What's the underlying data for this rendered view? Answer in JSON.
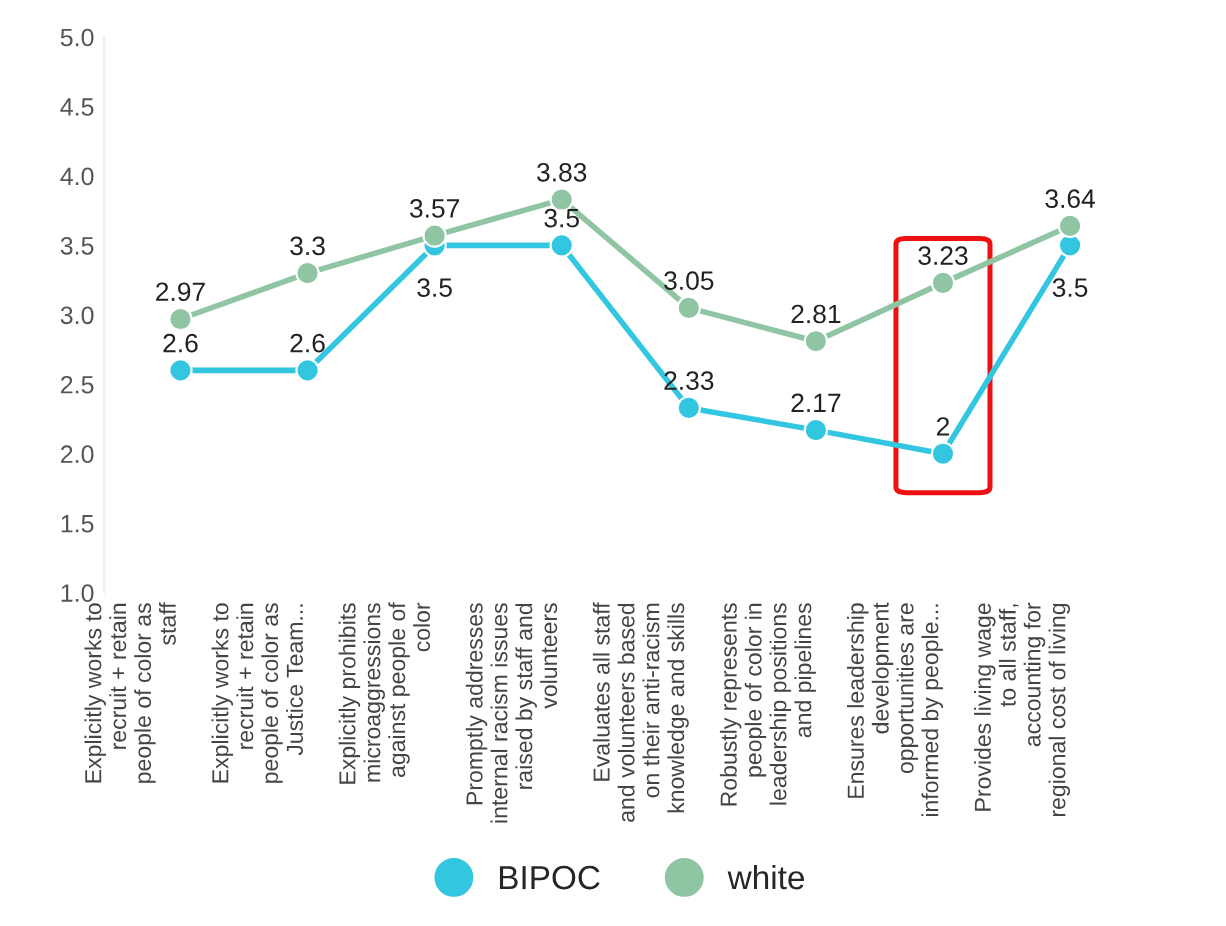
{
  "chart_data": {
    "type": "line",
    "categories": [
      "Explicitly works to\nrecruit + retain\npeople of color as\nstaff",
      "Explicitly works to\nrecruit + retain\npeople of color as\nJustice Team...",
      "Explicitly prohibits\nmicroaggressions\nagainst people of\ncolor",
      "Promptly addresses\ninternal racism issues\nraised by staff and\nvolunteers",
      "Evaluates all staff\nand volunteers based\non their anti-racism\nknowledge and skills",
      "Robustly represents\npeople of color in\nleadership positions\nand pipelines",
      "Ensures leadership\ndevelopment\nopportunities are\ninformed by people...",
      "Provides living wage\nto all staff,\naccounting for\nregional cost of living"
    ],
    "series": [
      {
        "name": "BIPOC",
        "color": "#33c6e0",
        "values": [
          2.6,
          2.6,
          3.5,
          3.5,
          2.33,
          2.17,
          2,
          3.5
        ]
      },
      {
        "name": "white",
        "color": "#8fc5a3",
        "values": [
          2.97,
          3.3,
          3.57,
          3.83,
          3.05,
          2.81,
          3.23,
          3.64
        ]
      }
    ],
    "ylim": [
      1.0,
      5.0
    ],
    "yticks": [
      {
        "value": 1.0,
        "label": "1.0"
      },
      1.5,
      {
        "value": 2.0,
        "label": "2.0"
      },
      2.5,
      {
        "value": 3.0,
        "label": "3.0"
      },
      3.5,
      {
        "value": 4.0,
        "label": "4.0"
      },
      4.5,
      {
        "value": 5.0,
        "label": "5.0"
      }
    ],
    "data_labels": true,
    "grid": false,
    "legend": "bottom",
    "marker": "circle",
    "line_style": "solid"
  }
}
